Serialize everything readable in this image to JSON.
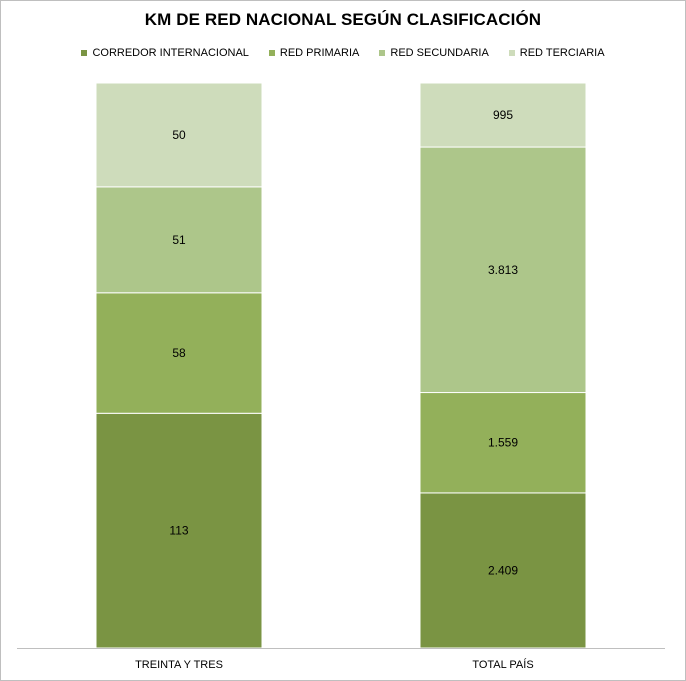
{
  "chart_data": {
    "type": "bar",
    "stacked": true,
    "normalized": true,
    "title": "KM DE RED NACIONAL SEGÚN CLASIFICACIÓN",
    "legend_position": "top",
    "grid": false,
    "categories": [
      "TREINTA Y TRES",
      "TOTAL PAÍS"
    ],
    "series": [
      {
        "name": "CORREDOR INTERNACIONAL",
        "values": [
          113,
          2409
        ],
        "labels": [
          "113",
          "2.409"
        ],
        "color": "#7a9443"
      },
      {
        "name": "RED PRIMARIA",
        "values": [
          58,
          1559
        ],
        "labels": [
          "58",
          "1.559"
        ],
        "color": "#93b05a"
      },
      {
        "name": "RED SECUNDARIA",
        "values": [
          51,
          3813
        ],
        "labels": [
          "51",
          "3.813"
        ],
        "color": "#adc68a"
      },
      {
        "name": "RED TERCIARIA",
        "values": [
          50,
          995
        ],
        "labels": [
          "50",
          "995"
        ],
        "color": "#cedcbb"
      }
    ]
  }
}
